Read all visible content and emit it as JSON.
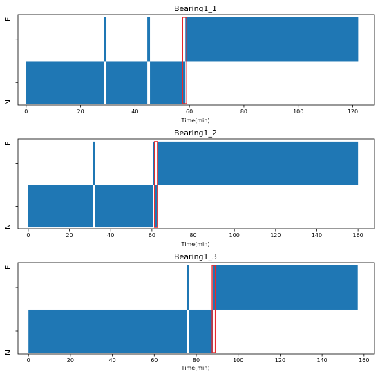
{
  "chart_data": [
    {
      "type": "bar",
      "title": "Bearing1_1",
      "xlabel": "Time(min)",
      "ylabel": "",
      "y_categories": [
        "N",
        "F"
      ],
      "xlim": [
        -3,
        128
      ],
      "x_ticks": [
        0,
        20,
        40,
        60,
        80,
        100,
        120
      ],
      "series_color": "#1f77b4",
      "marker_color": "#e8282b",
      "segments": [
        {
          "state": "N",
          "start": 0,
          "end": 28.5
        },
        {
          "state": "F",
          "start": 28.5,
          "end": 29.5
        },
        {
          "state": "N",
          "start": 29.5,
          "end": 44.5
        },
        {
          "state": "F",
          "start": 44.5,
          "end": 45.5
        },
        {
          "state": "N",
          "start": 45.5,
          "end": 58.5
        },
        {
          "state": "F",
          "start": 58.5,
          "end": 122
        }
      ],
      "marker": {
        "start": 57.5,
        "end": 59.0
      }
    },
    {
      "type": "bar",
      "title": "Bearing1_2",
      "xlabel": "Time(min)",
      "ylabel": "",
      "y_categories": [
        "N",
        "F"
      ],
      "xlim": [
        -5,
        168
      ],
      "x_ticks": [
        0,
        20,
        40,
        60,
        80,
        100,
        120,
        140,
        160
      ],
      "series_color": "#1f77b4",
      "marker_color": "#e8282b",
      "segments": [
        {
          "state": "N",
          "start": 0,
          "end": 31.5
        },
        {
          "state": "F",
          "start": 31.5,
          "end": 32.5
        },
        {
          "state": "N",
          "start": 32.5,
          "end": 60.5
        },
        {
          "state": "F",
          "start": 60.5,
          "end": 61.5
        },
        {
          "state": "N",
          "start": 61.5,
          "end": 62.5
        },
        {
          "state": "F",
          "start": 62.5,
          "end": 160
        }
      ],
      "marker": {
        "start": 61.3,
        "end": 62.7
      }
    },
    {
      "type": "bar",
      "title": "Bearing1_3",
      "xlabel": "Time(min)",
      "ylabel": "",
      "y_categories": [
        "N",
        "F"
      ],
      "xlim": [
        -5,
        165
      ],
      "x_ticks": [
        0,
        20,
        40,
        60,
        80,
        100,
        120,
        140,
        160
      ],
      "series_color": "#1f77b4",
      "marker_color": "#e8282b",
      "segments": [
        {
          "state": "N",
          "start": 0,
          "end": 75.5
        },
        {
          "state": "F",
          "start": 75.5,
          "end": 76.5
        },
        {
          "state": "N",
          "start": 76.5,
          "end": 88.0
        },
        {
          "state": "F",
          "start": 88.0,
          "end": 157
        }
      ],
      "marker": {
        "start": 87.6,
        "end": 89.1
      }
    }
  ]
}
